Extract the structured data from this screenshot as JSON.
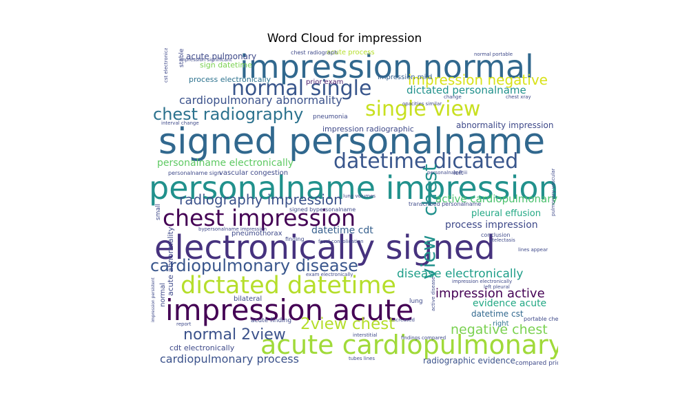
{
  "chart_data": {
    "type": "wordcloud",
    "title": "Word Cloud for impression",
    "words": [
      {
        "text": "signed personalname",
        "color": "#31688e",
        "rotate": 0
      },
      {
        "text": "electronically signed",
        "color": "#46327e",
        "rotate": 0
      },
      {
        "text": "personalname impression",
        "color": "#21918c",
        "rotate": 0
      },
      {
        "text": "impression normal",
        "color": "#31688e",
        "rotate": 0
      },
      {
        "text": "impression acute",
        "color": "#440154",
        "rotate": 0
      },
      {
        "text": "acute cardiopulmonary",
        "color": "#a0da39",
        "rotate": 0
      },
      {
        "text": "dictated datetime",
        "color": "#b5de2b",
        "rotate": 0
      },
      {
        "text": "chest impression",
        "color": "#440154",
        "rotate": 0
      },
      {
        "text": "datetime dictated",
        "color": "#39568c",
        "rotate": 0
      },
      {
        "text": "normal single",
        "color": "#39568c",
        "rotate": 0
      },
      {
        "text": "single view",
        "color": "#c8e020",
        "rotate": 0
      },
      {
        "text": "cardiopulmonary disease",
        "color": "#39568c",
        "rotate": 0
      },
      {
        "text": "chest radiography",
        "color": "#2c728e",
        "rotate": 0
      },
      {
        "text": "radiography impression",
        "color": "#3b528b",
        "rotate": 0
      },
      {
        "text": "normal 2view",
        "color": "#3b528b",
        "rotate": 0
      },
      {
        "text": "2view chest",
        "color": "#b5de2b",
        "rotate": 0
      },
      {
        "text": "chest",
        "color": "#21918c",
        "rotate": 90
      },
      {
        "text": "view",
        "color": "#21918c",
        "rotate": 90
      },
      {
        "text": "impression negative",
        "color": "#d8e219",
        "rotate": 0
      },
      {
        "text": "negative chest",
        "color": "#7ad151",
        "rotate": 0
      },
      {
        "text": "disease electronically",
        "color": "#1f9e89",
        "rotate": 0
      },
      {
        "text": "impression active",
        "color": "#440154",
        "rotate": 0
      },
      {
        "text": "dictated personalname",
        "color": "#21918c",
        "rotate": 0
      },
      {
        "text": "cardiopulmonary abnormality",
        "color": "#3b528b",
        "rotate": 0
      },
      {
        "text": "personalname electronically",
        "color": "#5ec962",
        "rotate": 0
      },
      {
        "text": "active cardiopulmonary",
        "color": "#4ac16d",
        "rotate": 0
      },
      {
        "text": "cardiopulmonary process",
        "color": "#3b528b",
        "rotate": 0
      },
      {
        "text": "process impression",
        "color": "#3e4989",
        "rotate": 0
      },
      {
        "text": "evidence acute",
        "color": "#22a884",
        "rotate": 0
      },
      {
        "text": "datetime cdt",
        "color": "#355f8d",
        "rotate": 0
      },
      {
        "text": "pleural effusion",
        "color": "#22a884",
        "rotate": 0
      },
      {
        "text": "radiographic evidence",
        "color": "#3b528b",
        "rotate": 0
      },
      {
        "text": "acute pulmonary",
        "color": "#3e4989",
        "rotate": 0
      },
      {
        "text": "abnormality impression",
        "color": "#3e4989",
        "rotate": 0
      },
      {
        "text": "datetime cst",
        "color": "#31688e",
        "rotate": 0
      },
      {
        "text": "process electronically",
        "color": "#2c728e",
        "rotate": 0
      },
      {
        "text": "impression radiographic",
        "color": "#3e4989",
        "rotate": 0
      },
      {
        "text": "acute abnormality",
        "color": "#3e4989",
        "rotate": 90
      },
      {
        "text": "cdt electronically",
        "color": "#3e4989",
        "rotate": 0
      },
      {
        "text": "sign datetime",
        "color": "#7ad151",
        "rotate": 0
      },
      {
        "text": "acute process",
        "color": "#b5de2b",
        "rotate": 0
      },
      {
        "text": "impression mild",
        "color": "#355f8d",
        "rotate": 0
      },
      {
        "text": "prior exam",
        "color": "#481a6c",
        "rotate": 0
      },
      {
        "text": "vascular congestion",
        "color": "#3e4989",
        "rotate": 0
      },
      {
        "text": "pneumothorax",
        "color": "#3e4989",
        "rotate": 0
      },
      {
        "text": "pneumonia",
        "color": "#3e4989",
        "rotate": 0
      },
      {
        "text": "normal",
        "color": "#3e4989",
        "rotate": 90
      },
      {
        "text": "right",
        "color": "#2c728e",
        "rotate": 0
      },
      {
        "text": "bilateral",
        "color": "#3e4989",
        "rotate": 0
      },
      {
        "text": "acute finding",
        "color": "#3e4989",
        "rotate": 0
      },
      {
        "text": "compared prior",
        "color": "#3e4989",
        "rotate": 0
      },
      {
        "text": "portable chest",
        "color": "#3e4989",
        "rotate": 0
      },
      {
        "text": "conclusion",
        "color": "#3e4989",
        "rotate": 0
      },
      {
        "text": "lung",
        "color": "#3e4989",
        "rotate": 0
      },
      {
        "text": "left",
        "color": "#3e4989",
        "rotate": 0
      },
      {
        "text": "stable",
        "color": "#3e4989",
        "rotate": 90
      },
      {
        "text": "small",
        "color": "#3e4989",
        "rotate": 90
      },
      {
        "text": "finding",
        "color": "#3e4989",
        "rotate": 0
      },
      {
        "text": "chest radiograph",
        "color": "#3e4989",
        "rotate": 0
      },
      {
        "text": "transcribed personalname",
        "color": "#3e4989",
        "rotate": 0
      },
      {
        "text": "signed bypersonalname",
        "color": "#3e4989",
        "rotate": 0
      },
      {
        "text": "personalname sign",
        "color": "#3e4989",
        "rotate": 0
      },
      {
        "text": "interval change",
        "color": "#3e4989",
        "rotate": 0
      },
      {
        "text": "impression significant",
        "color": "#3e4989",
        "rotate": 0
      },
      {
        "text": "cst electronically",
        "color": "#3e4989",
        "rotate": 90
      },
      {
        "text": "impression electronically",
        "color": "#3e4989",
        "rotate": 0
      },
      {
        "text": "focal consolidation",
        "color": "#3e4989",
        "rotate": 0
      },
      {
        "text": "tubes lines",
        "color": "#3e4989",
        "rotate": 0
      },
      {
        "text": "atelectasis",
        "color": "#3e4989",
        "rotate": 0
      },
      {
        "text": "opacities similar",
        "color": "#3e4989",
        "rotate": 0
      },
      {
        "text": "normal portable",
        "color": "#3e4989",
        "rotate": 0
      },
      {
        "text": "chest xray",
        "color": "#3e4989",
        "rotate": 0
      },
      {
        "text": "exam electronically",
        "color": "#3e4989",
        "rotate": 0
      },
      {
        "text": "personalname iii",
        "color": "#3e4989",
        "rotate": 0
      },
      {
        "text": "lines appear",
        "color": "#3e4989",
        "rotate": 0
      },
      {
        "text": "report",
        "color": "#3e4989",
        "rotate": 0
      },
      {
        "text": "interstitial",
        "color": "#3e4989",
        "rotate": 0
      },
      {
        "text": "lung volumes",
        "color": "#3e4989",
        "rotate": 0
      },
      {
        "text": "active disease",
        "color": "#3e4989",
        "rotate": 90
      },
      {
        "text": "left pleural",
        "color": "#3e4989",
        "rotate": 0
      },
      {
        "text": "pulmonary vascular",
        "color": "#3e4989",
        "rotate": 90
      },
      {
        "text": "change",
        "color": "#3e4989",
        "rotate": 0
      },
      {
        "text": "impression persistent",
        "color": "#3e4989",
        "rotate": 90
      },
      {
        "text": "increased",
        "color": "#3e4989",
        "rotate": 0
      },
      {
        "text": "bypersonalname impression",
        "color": "#3e4989",
        "rotate": 0
      },
      {
        "text": "findings compared",
        "color": "#3e4989",
        "rotate": 0
      }
    ]
  }
}
